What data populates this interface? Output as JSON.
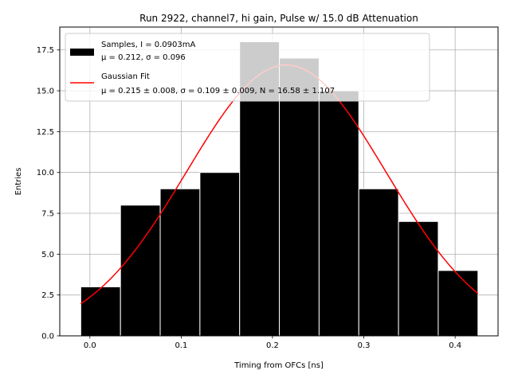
{
  "chart_data": {
    "type": "bar",
    "title": "Run 2922, channel7, hi gain, Pulse w/ 15.0 dB Attenuation",
    "xlabel": "Timing from OFCs [ns]",
    "ylabel": "Entries",
    "xlim": [
      -0.033,
      0.447
    ],
    "ylim": [
      0,
      18.9
    ],
    "grid": true,
    "legend_position": "top-left",
    "xticks": [
      0.0,
      0.1,
      0.2,
      0.3,
      0.4
    ],
    "xtick_labels": [
      "0.0",
      "0.1",
      "0.2",
      "0.3",
      "0.4"
    ],
    "yticks": [
      0,
      2.5,
      5,
      7.5,
      10,
      12.5,
      15,
      17.5
    ],
    "ytick_labels": [
      "0.0",
      "2.5",
      "5.0",
      "7.5",
      "10.0",
      "12.5",
      "15.0",
      "17.5"
    ],
    "histogram": {
      "name": "Samples, I = 0.0903mA",
      "stats_label": "μ = 0.212, σ = 0.096",
      "color": "#000000",
      "bin_edges": [
        -0.01,
        0.0335,
        0.077,
        0.1205,
        0.164,
        0.2075,
        0.251,
        0.2945,
        0.338,
        0.3815,
        0.425
      ],
      "counts": [
        3,
        8,
        9,
        10,
        18,
        17,
        15,
        9,
        7,
        4
      ]
    },
    "fit": {
      "name": "Gaussian Fit",
      "stats_label": "μ = 0.215 ± 0.008, σ = 0.109 ± 0.009, N = 16.58 ± 1.107",
      "color": "#ff0000",
      "mu": 0.215,
      "sigma": 0.109,
      "N": 16.58,
      "x_range": [
        -0.01,
        0.425
      ]
    }
  }
}
